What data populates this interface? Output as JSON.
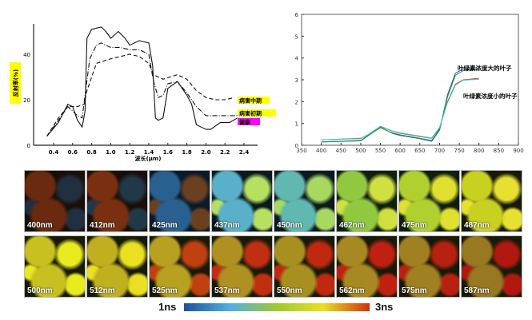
{
  "chart_data": [
    {
      "type": "line",
      "xlabel": "波长(μm)",
      "ylabel": "反射率(%)",
      "xlim": [
        0.2,
        2.5
      ],
      "ylim": [
        0,
        53
      ],
      "xticks": [
        "0.4",
        "0.6",
        "0.8",
        "1.0",
        "1.2",
        "1.4",
        "1.6",
        "1.8",
        "2.0",
        "2.2",
        "2.4"
      ],
      "yticks": [
        "0",
        "20",
        "40"
      ],
      "grid": false,
      "series": [
        {
          "name": "病害中期",
          "style": "dashed",
          "label_color": "#ffff00",
          "x": [
            0.33,
            0.45,
            0.55,
            0.65,
            0.72,
            0.75,
            0.85,
            1.0,
            1.2,
            1.3,
            1.4,
            1.45,
            1.55,
            1.7,
            1.8,
            1.9,
            2.0,
            2.1,
            2.2,
            2.3
          ],
          "y": [
            4,
            12,
            17,
            17,
            18,
            24,
            36,
            38,
            40,
            39,
            36,
            31,
            29,
            31,
            29,
            24,
            21,
            20,
            20,
            21
          ]
        },
        {
          "name": "病害初期",
          "style": "dashdot",
          "label_color": "#ffff00",
          "x": [
            0.33,
            0.45,
            0.55,
            0.65,
            0.7,
            0.73,
            0.78,
            0.85,
            0.9,
            1.0,
            1.1,
            1.2,
            1.3,
            1.4,
            1.45,
            1.5,
            1.55,
            1.6,
            1.7,
            1.8,
            1.9,
            2.0,
            2.1,
            2.33
          ],
          "y": [
            4,
            11,
            17,
            13,
            12,
            22,
            38,
            44,
            45,
            43,
            43,
            42,
            42,
            40,
            28,
            21,
            22,
            27,
            28,
            23,
            17,
            13,
            13,
            13
          ]
        },
        {
          "name": "健康",
          "style": "solid",
          "label_color": "#ff00ff",
          "x": [
            0.33,
            0.45,
            0.55,
            0.6,
            0.65,
            0.7,
            0.73,
            0.75,
            0.8,
            0.9,
            0.95,
            1.0,
            1.08,
            1.15,
            1.2,
            1.3,
            1.4,
            1.44,
            1.47,
            1.5,
            1.55,
            1.6,
            1.7,
            1.8,
            1.85,
            1.9,
            2.0,
            2.05,
            2.15,
            2.25,
            2.33
          ],
          "y": [
            4,
            10,
            18,
            17,
            11,
            8,
            15,
            47,
            51,
            52,
            50,
            47,
            50,
            47,
            44,
            46,
            45,
            35,
            12,
            11,
            12,
            25,
            28,
            22,
            18,
            9,
            7,
            7,
            10,
            10,
            12
          ]
        }
      ]
    },
    {
      "type": "line",
      "xlim": [
        350,
        900
      ],
      "ylim": [
        0,
        6
      ],
      "xticks": [
        "350",
        "400",
        "450",
        "500",
        "550",
        "600",
        "650",
        "700",
        "750",
        "800",
        "850",
        "900"
      ],
      "yticks": [
        "0",
        "1",
        "2",
        "3",
        "4",
        "5",
        "6"
      ],
      "grid": false,
      "annotations": [
        "叶绿素浓度大的叶子",
        "叶绿素浓度小的叶子"
      ],
      "series": [
        {
          "color": "#2040ff",
          "x": [
            400,
            500,
            520,
            550,
            580,
            600,
            650,
            680,
            700,
            720,
            740,
            760,
            800
          ],
          "y": [
            0.15,
            0.2,
            0.45,
            0.82,
            0.55,
            0.45,
            0.3,
            0.18,
            0.7,
            2.3,
            3.3,
            3.5,
            3.5
          ]
        },
        {
          "color": "#20a020",
          "x": [
            400,
            500,
            520,
            550,
            580,
            600,
            650,
            680,
            700,
            720,
            740,
            760,
            800
          ],
          "y": [
            0.15,
            0.22,
            0.47,
            0.8,
            0.57,
            0.48,
            0.32,
            0.22,
            0.75,
            2.2,
            3.2,
            3.42,
            3.48
          ]
        },
        {
          "color": "#ff3030",
          "x": [
            400,
            500,
            520,
            550,
            580,
            600,
            650,
            680,
            700,
            720,
            740,
            760,
            800
          ],
          "y": [
            0.25,
            0.32,
            0.5,
            0.85,
            0.65,
            0.55,
            0.4,
            0.32,
            0.8,
            2.0,
            2.8,
            3.0,
            3.07
          ]
        },
        {
          "color": "#20d0d0",
          "x": [
            400,
            500,
            520,
            550,
            580,
            600,
            650,
            680,
            700,
            720,
            740,
            760,
            800
          ],
          "y": [
            0.25,
            0.3,
            0.5,
            0.87,
            0.66,
            0.57,
            0.42,
            0.33,
            0.82,
            1.95,
            2.75,
            2.98,
            3.03
          ]
        }
      ]
    }
  ],
  "tiles": [
    {
      "label": "400nm",
      "colors": [
        "#1a0f08",
        "#6a2a10",
        "#203040"
      ]
    },
    {
      "label": "412nm",
      "colors": [
        "#1a0f08",
        "#7a3010",
        "#203848"
      ]
    },
    {
      "label": "425nm",
      "colors": [
        "#0a1a2a",
        "#2a6090",
        "#6a4020"
      ]
    },
    {
      "label": "437nm",
      "colors": [
        "#0a1a20",
        "#5ab0c8",
        "#b8e060"
      ]
    },
    {
      "label": "450nm",
      "colors": [
        "#0a1a20",
        "#60b8b0",
        "#a8d860"
      ]
    },
    {
      "label": "462nm",
      "colors": [
        "#102010",
        "#90c840",
        "#d0e040"
      ]
    },
    {
      "label": "475nm",
      "colors": [
        "#102010",
        "#b0d030",
        "#e0e030"
      ]
    },
    {
      "label": "487nm",
      "colors": [
        "#181a08",
        "#c8d020",
        "#e8e030"
      ]
    },
    {
      "label": "500nm",
      "colors": [
        "#181a08",
        "#c8c020",
        "#eaea20"
      ]
    },
    {
      "label": "512nm",
      "colors": [
        "#181a08",
        "#c0b020",
        "#e8e020"
      ]
    },
    {
      "label": "525nm",
      "colors": [
        "#181a08",
        "#b8a020",
        "#c04010"
      ]
    },
    {
      "label": "537nm",
      "colors": [
        "#181a08",
        "#b09020",
        "#c03010"
      ]
    },
    {
      "label": "550nm",
      "colors": [
        "#181a08",
        "#a89020",
        "#c02810"
      ]
    },
    {
      "label": "562nm",
      "colors": [
        "#181a08",
        "#a88820",
        "#c02010"
      ]
    },
    {
      "label": "575nm",
      "colors": [
        "#181a08",
        "#a08020",
        "#b82010"
      ]
    },
    {
      "label": "587nm",
      "colors": [
        "#181a08",
        "#987820",
        "#b01810"
      ]
    }
  ],
  "colorbar": {
    "min_label": "1ns",
    "max_label": "3ns",
    "colors": [
      "#2050a0",
      "#50b0e0",
      "#a0c830",
      "#e8e020",
      "#d03010"
    ]
  }
}
